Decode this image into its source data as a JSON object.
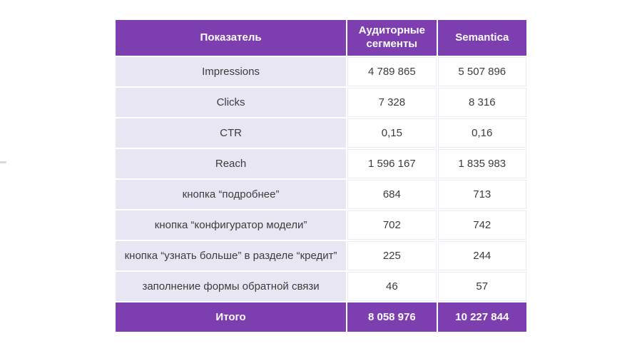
{
  "colors": {
    "header_bg": "#7d3fb0",
    "row_label_bg": "#e9e6f4",
    "value_border": "#ece9f5",
    "body_text": "#3c3c3c",
    "header_text": "#ffffff",
    "page_bg": "#ffffff"
  },
  "chart_data": {
    "type": "table",
    "title": "",
    "columns": [
      "Показатель",
      "Аудиторные сегменты",
      "Semantica"
    ],
    "rows": [
      [
        "Impressions",
        "4 789 865",
        "5 507 896"
      ],
      [
        "Clicks",
        "7 328",
        "8 316"
      ],
      [
        "CTR",
        "0,15",
        "0,16"
      ],
      [
        "Reach",
        "1 596 167",
        "1 835 983"
      ],
      [
        "кнопка “подробнее”",
        "684",
        "713"
      ],
      [
        "кнопка “конфигуратор модели”",
        "702",
        "742"
      ],
      [
        "кнопка “узнать больше” в разделе “кредит”",
        "225",
        "244"
      ],
      [
        "заполнение формы обратной связи",
        "46",
        "57"
      ]
    ],
    "footer": [
      "Итого",
      "8 058 976",
      "10 227 844"
    ]
  }
}
